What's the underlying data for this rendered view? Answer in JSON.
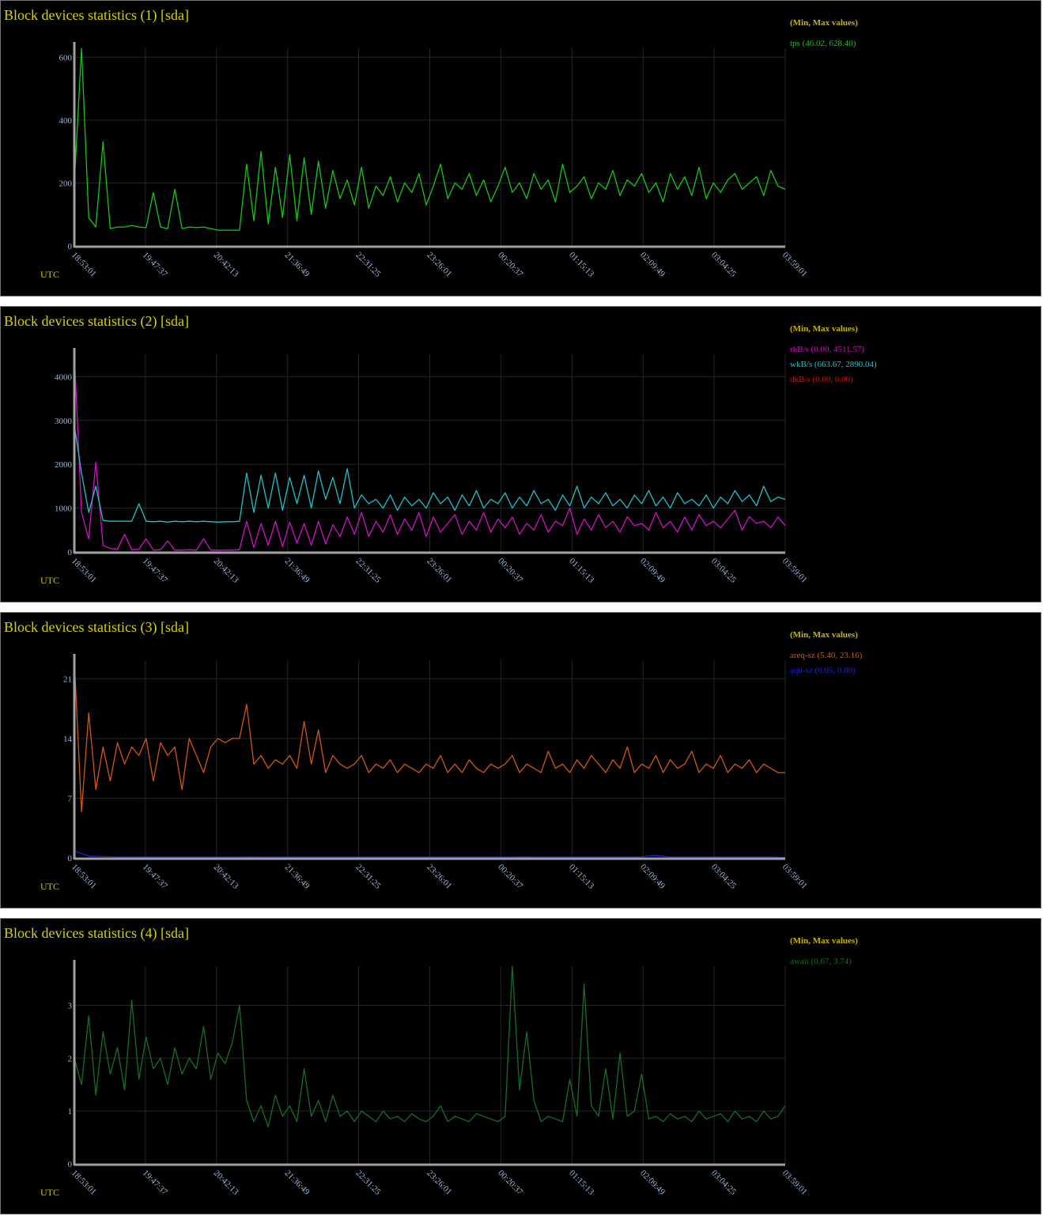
{
  "legend_header": "(Min, Max values)",
  "x_timezone": "UTC",
  "x_ticks": [
    "18:53:01",
    "19:47:37",
    "20:42:13",
    "21:36:49",
    "22:31:25",
    "23:26:01",
    "00:20:37",
    "01:15:13",
    "02:09:49",
    "03:04:25",
    "03:59:01"
  ],
  "chart_data": [
    {
      "type": "line",
      "title": "Block devices statistics (1) [sda]",
      "grid": true,
      "legend_placement": "right",
      "y_ticks": [
        0,
        200,
        400,
        600
      ],
      "ylim": [
        0,
        628.4
      ],
      "series": [
        {
          "name": "tps",
          "legend": "tps (46.02, 628.40)",
          "color": "#14c814",
          "values": [
            200,
            628,
            90,
            60,
            330,
            55,
            60,
            60,
            65,
            60,
            58,
            170,
            60,
            55,
            180,
            55,
            60,
            58,
            60,
            55,
            50,
            50,
            50,
            50,
            260,
            80,
            300,
            70,
            250,
            90,
            290,
            80,
            280,
            100,
            270,
            120,
            240,
            150,
            210,
            130,
            250,
            120,
            190,
            160,
            220,
            140,
            200,
            170,
            230,
            130,
            190,
            260,
            150,
            200,
            180,
            230,
            160,
            210,
            140,
            190,
            250,
            170,
            200,
            150,
            230,
            180,
            210,
            140,
            260,
            170,
            190,
            220,
            150,
            200,
            180,
            240,
            160,
            210,
            190,
            230,
            170,
            200,
            140,
            230,
            180,
            220,
            160,
            250,
            150,
            200,
            170,
            210,
            230,
            180,
            200,
            220,
            160,
            240,
            190,
            180
          ]
        }
      ]
    },
    {
      "type": "line",
      "title": "Block devices statistics (2) [sda]",
      "grid": true,
      "legend_placement": "right",
      "y_ticks": [
        0,
        1000,
        2000,
        3000,
        4000
      ],
      "ylim": [
        0,
        4511.57
      ],
      "series": [
        {
          "name": "rkB/s",
          "legend": "rkB/s (0.00, 4511.57)",
          "color": "#d010c8",
          "values": [
            4511,
            900,
            300,
            2050,
            150,
            80,
            60,
            400,
            50,
            60,
            300,
            40,
            50,
            250,
            40,
            40,
            50,
            40,
            300,
            40,
            40,
            40,
            40,
            50,
            700,
            100,
            650,
            150,
            700,
            120,
            680,
            200,
            650,
            150,
            700,
            180,
            620,
            350,
            800,
            400,
            900,
            350,
            700,
            450,
            850,
            400,
            750,
            500,
            900,
            350,
            800,
            450,
            650,
            850,
            400,
            700,
            500,
            900,
            450,
            750,
            550,
            800,
            400,
            650,
            500,
            850,
            450,
            700,
            600,
            1000,
            400,
            750,
            500,
            850,
            550,
            700,
            450,
            800,
            600,
            650,
            500,
            900,
            550,
            700,
            450,
            800,
            500,
            850,
            600,
            700,
            550,
            750,
            950,
            500,
            800,
            650,
            700,
            550,
            800,
            600
          ]
        },
        {
          "name": "wkB/s",
          "legend": "wkB/s (663.67, 2890.04)",
          "color": "#20c0c8",
          "values": [
            2890,
            1800,
            900,
            1500,
            720,
            700,
            700,
            700,
            700,
            1100,
            700,
            690,
            700,
            680,
            700,
            690,
            700,
            690,
            700,
            690,
            680,
            690,
            690,
            700,
            1800,
            900,
            1750,
            1000,
            1800,
            950,
            1700,
            1100,
            1750,
            1000,
            1850,
            1200,
            1700,
            1100,
            1900,
            1000,
            1300,
            1100,
            1200,
            1000,
            1300,
            950,
            1250,
            1050,
            1200,
            1000,
            1350,
            1100,
            1250,
            950,
            1300,
            1050,
            1400,
            1000,
            1200,
            1100,
            1350,
            1000,
            1250,
            1050,
            1400,
            1100,
            1200,
            950,
            1300,
            1050,
            1500,
            1000,
            1250,
            1100,
            1350,
            1050,
            1200,
            1000,
            1300,
            1100,
            1400,
            1050,
            1250,
            1000,
            1350,
            1100,
            1200,
            1050,
            1300,
            1000,
            1250,
            1100,
            1400,
            1150,
            1300,
            1050,
            1500,
            1150,
            1250,
            1200
          ]
        },
        {
          "name": "dkB/s",
          "legend": "dkB/s (0.00, 0.00)",
          "color": "#d81010",
          "values": [
            0,
            0
          ]
        }
      ]
    },
    {
      "type": "line",
      "title": "Block devices statistics (3) [sda]",
      "grid": true,
      "legend_placement": "right",
      "y_ticks": [
        0,
        7,
        14,
        21
      ],
      "ylim": [
        0,
        23.16
      ],
      "series": [
        {
          "name": "areq-sz",
          "legend": "areq-sz (5.40, 23.16)",
          "color": "#d05810",
          "values": [
            23.16,
            5.4,
            17,
            8,
            13,
            9,
            13.5,
            11,
            13,
            12,
            14,
            9,
            13.5,
            12,
            13,
            8,
            14,
            12,
            10,
            13,
            14,
            13.5,
            14,
            14,
            18,
            11,
            12,
            10.5,
            11.5,
            11,
            12,
            10.5,
            16,
            11,
            15,
            10,
            12,
            11,
            10.5,
            11,
            12,
            10,
            11,
            10.5,
            11.5,
            10,
            11,
            10.5,
            10,
            11,
            10.5,
            12,
            10,
            11,
            10,
            11.5,
            10.5,
            10,
            11,
            10.5,
            11,
            12,
            10,
            11,
            10.5,
            10,
            12.5,
            10.5,
            11,
            10,
            11.5,
            10.5,
            12,
            11,
            10,
            11.5,
            10.5,
            13,
            10,
            11,
            10.5,
            12,
            10,
            11.5,
            10.5,
            11,
            12.5,
            10,
            11,
            10.5,
            12,
            10,
            11,
            10.5,
            11.5,
            10,
            11,
            10.5,
            10,
            10
          ]
        },
        {
          "name": "aqu-sz",
          "legend": "aqu-sz (0.05, 0.80)",
          "color": "#2020e0",
          "values": [
            0.8,
            0.2,
            0.15,
            0.1,
            0.1,
            0.1,
            0.1,
            0.1,
            0.1,
            0.1,
            0.1,
            0.1,
            0.12,
            0.1,
            0.1,
            0.1,
            0.1,
            0.1,
            0.1,
            0.1,
            0.1,
            0.1,
            0.1,
            0.1,
            0.1,
            0.1,
            0.1,
            0.1,
            0.1,
            0.1,
            0.1,
            0.12,
            0.1,
            0.1,
            0.1,
            0.1,
            0.1,
            0.1,
            0.1,
            0.1,
            0.3,
            0.1,
            0.1,
            0.1,
            0.1,
            0.1,
            0.1,
            0.1,
            0.1,
            0.05
          ]
        }
      ]
    },
    {
      "type": "line",
      "title": "Block devices statistics (4) [sda]",
      "grid": true,
      "legend_placement": "right",
      "y_ticks": [
        0,
        1,
        2,
        3
      ],
      "ylim": [
        0,
        3.74
      ],
      "series": [
        {
          "name": "await",
          "legend": "await (0.67, 3.74)",
          "color": "#146e28",
          "values": [
            2,
            1.5,
            2.8,
            1.3,
            2.5,
            1.7,
            2.2,
            1.4,
            3.1,
            1.6,
            2.4,
            1.8,
            2,
            1.5,
            2.2,
            1.7,
            2,
            1.8,
            2.6,
            1.6,
            2.1,
            1.9,
            2.3,
            3,
            1.2,
            0.8,
            1.1,
            0.7,
            1.3,
            0.9,
            1.1,
            0.8,
            1.8,
            0.9,
            1.2,
            0.8,
            1.3,
            0.9,
            1,
            0.8,
            1,
            0.9,
            0.8,
            1,
            0.85,
            0.9,
            0.8,
            0.95,
            0.85,
            0.8,
            0.9,
            1.1,
            0.8,
            0.9,
            0.85,
            0.8,
            0.95,
            0.9,
            0.85,
            0.8,
            0.9,
            3.74,
            1.4,
            2.5,
            1.2,
            0.8,
            0.9,
            0.85,
            0.8,
            1.6,
            0.9,
            3.4,
            1.1,
            0.9,
            1.8,
            0.85,
            2.1,
            0.9,
            1,
            1.7,
            0.85,
            0.9,
            0.8,
            0.95,
            0.85,
            0.9,
            0.8,
            1,
            0.85,
            0.9,
            0.95,
            0.8,
            1,
            0.85,
            0.9,
            0.8,
            1,
            0.85,
            0.9,
            1.1
          ]
        }
      ]
    }
  ]
}
